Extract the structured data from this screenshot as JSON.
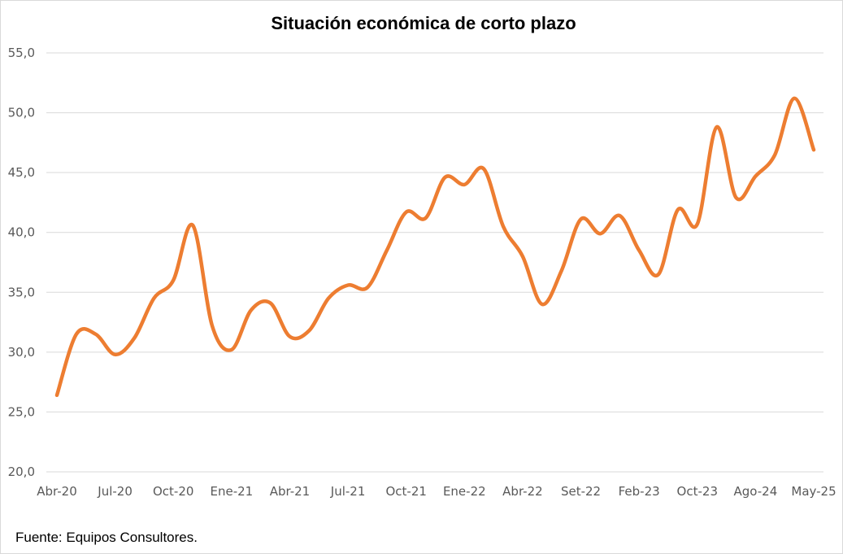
{
  "source_note": "Fuente: Equipos Consultores.",
  "chart_data": {
    "type": "line",
    "title": "Situación económica de corto plazo",
    "xlabel": "",
    "ylabel": "",
    "ylim": [
      20,
      55
    ],
    "yticks": [
      20,
      25,
      30,
      35,
      40,
      45,
      50,
      55
    ],
    "ytick_labels": [
      "20,0",
      "25,0",
      "30,0",
      "35,0",
      "40,0",
      "45,0",
      "50,0",
      "55,0"
    ],
    "x_tick_labels": [
      "Abr-20",
      "Jul-20",
      "Oct-20",
      "Ene-21",
      "Abr-21",
      "Jul-21",
      "Oct-21",
      "Ene-22",
      "Abr-22",
      "Set-22",
      "Feb-23",
      "Oct-23",
      "Ago-24",
      "May-25"
    ],
    "grid": true,
    "legend": "none",
    "line_color": "#ED7D31",
    "series": [
      {
        "values": [
          26.4,
          31.5,
          31.5,
          29.8,
          31.2,
          34.5,
          36.0,
          40.6,
          32.2,
          30.2,
          33.5,
          34.1,
          31.3,
          31.8,
          34.5,
          35.6,
          35.4,
          38.5,
          41.7,
          41.2,
          44.6,
          44.0,
          45.3,
          40.5,
          38.0,
          34.0,
          36.8,
          41.1,
          39.9,
          41.4,
          38.5,
          36.5,
          41.9,
          40.7,
          48.8,
          42.9,
          44.7,
          46.5,
          51.2,
          46.9
        ]
      }
    ]
  }
}
